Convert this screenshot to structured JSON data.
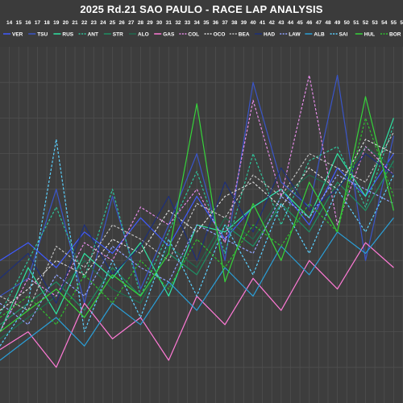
{
  "chart_data": {
    "type": "line",
    "title": "2025 Rd.21 SAO PAULO - RACE LAP ANALYSIS",
    "grid": true,
    "legend_placement": "top",
    "x_ticks": [
      14,
      15,
      16,
      17,
      18,
      19,
      20,
      21,
      22,
      23,
      24,
      25,
      26,
      27,
      28,
      29,
      30,
      31,
      32,
      33,
      34,
      35,
      36,
      37,
      38,
      39,
      40,
      41,
      42,
      43,
      44,
      45,
      46,
      47,
      48,
      49,
      50,
      51,
      52,
      53,
      54,
      55,
      56
    ],
    "x_range": [
      13,
      56
    ],
    "y_range": [
      0,
      100
    ],
    "series": [
      {
        "name": "VER",
        "color": "#3f5bff",
        "dash": "solid",
        "x": [
          13,
          16,
          19,
          22,
          25,
          28,
          31,
          34,
          37,
          40,
          43,
          46,
          49,
          52,
          55
        ],
        "y": [
          40,
          45,
          38,
          48,
          42,
          52,
          44,
          58,
          46,
          55,
          60,
          50,
          66,
          58,
          70
        ]
      },
      {
        "name": "TSU",
        "color": "#3a55c8",
        "dash": "solid",
        "x": [
          13,
          16,
          19,
          22,
          25,
          28,
          31,
          34,
          37,
          40,
          43,
          46,
          49,
          52,
          55
        ],
        "y": [
          30,
          35,
          60,
          28,
          58,
          32,
          50,
          70,
          40,
          90,
          62,
          55,
          92,
          40,
          75
        ]
      },
      {
        "name": "RUS",
        "color": "#2ee5a2",
        "dash": "solid",
        "x": [
          13,
          16,
          19,
          22,
          25,
          28,
          31,
          34,
          37,
          40,
          43,
          46,
          49,
          52,
          55
        ],
        "y": [
          20,
          38,
          25,
          42,
          35,
          45,
          30,
          50,
          48,
          55,
          60,
          52,
          70,
          58,
          80
        ]
      },
      {
        "name": "ANT",
        "color": "#2ec39a",
        "dash": "dashed",
        "x": [
          13,
          16,
          19,
          22,
          25,
          28,
          31,
          34,
          37,
          40,
          43,
          46,
          49,
          52,
          55
        ],
        "y": [
          25,
          40,
          55,
          35,
          60,
          30,
          48,
          65,
          42,
          70,
          50,
          68,
          72,
          55,
          78
        ]
      },
      {
        "name": "STR",
        "color": "#1e8f63",
        "dash": "solid",
        "x": [
          13,
          16,
          19,
          22,
          25,
          28,
          31,
          34,
          37,
          40,
          43,
          46,
          49,
          52,
          55
        ],
        "y": [
          22,
          28,
          34,
          26,
          38,
          30,
          42,
          36,
          50,
          44,
          56,
          48,
          62,
          54,
          68
        ]
      },
      {
        "name": "ALO",
        "color": "#1f6b4e",
        "dash": "solid",
        "x": [
          13,
          16,
          19,
          22,
          25,
          28,
          31,
          34,
          37,
          40,
          43,
          46,
          49,
          52,
          55
        ],
        "y": [
          18,
          24,
          30,
          40,
          32,
          28,
          44,
          38,
          52,
          46,
          58,
          64,
          60,
          72,
          66
        ]
      },
      {
        "name": "GAS",
        "color": "#ff7ad6",
        "dash": "solid",
        "x": [
          13,
          16,
          19,
          22,
          25,
          28,
          31,
          34,
          37,
          40,
          43,
          46,
          49,
          52,
          55
        ],
        "y": [
          15,
          20,
          10,
          28,
          18,
          24,
          12,
          30,
          22,
          35,
          26,
          40,
          32,
          45,
          38
        ]
      },
      {
        "name": "COL",
        "color": "#e48be6",
        "dash": "dashed",
        "x": [
          13,
          16,
          19,
          22,
          25,
          28,
          31,
          34,
          37,
          40,
          43,
          46,
          49,
          52,
          55
        ],
        "y": [
          20,
          35,
          30,
          45,
          40,
          55,
          50,
          60,
          45,
          85,
          58,
          92,
          50,
          72,
          64
        ]
      },
      {
        "name": "OCO",
        "color": "#d9d9d9",
        "dash": "dashed",
        "x": [
          13,
          16,
          19,
          22,
          25,
          28,
          31,
          34,
          37,
          40,
          43,
          46,
          49,
          52,
          55
        ],
        "y": [
          26,
          32,
          40,
          36,
          46,
          42,
          54,
          48,
          58,
          62,
          55,
          66,
          60,
          74,
          70
        ]
      },
      {
        "name": "BEA",
        "color": "#bfbfbf",
        "dash": "dashed",
        "x": [
          13,
          16,
          19,
          22,
          25,
          28,
          31,
          34,
          37,
          40,
          43,
          46,
          49,
          52,
          55
        ],
        "y": [
          30,
          26,
          44,
          38,
          50,
          46,
          40,
          56,
          52,
          64,
          58,
          70,
          66,
          62,
          76
        ]
      },
      {
        "name": "HAD",
        "color": "#1d2f7a",
        "dash": "solid",
        "x": [
          13,
          16,
          19,
          22,
          25,
          28,
          31,
          34,
          37,
          40,
          43,
          46,
          49,
          52,
          55
        ],
        "y": [
          35,
          42,
          28,
          50,
          36,
          44,
          58,
          40,
          62,
          48,
          66,
          54,
          60,
          70,
          64
        ]
      },
      {
        "name": "LAW",
        "color": "#8fa3ff",
        "dash": "dashed",
        "x": [
          13,
          16,
          19,
          22,
          25,
          28,
          31,
          34,
          37,
          40,
          43,
          46,
          49,
          52,
          55
        ],
        "y": [
          28,
          22,
          36,
          30,
          44,
          38,
          34,
          50,
          46,
          42,
          58,
          52,
          64,
          60,
          56
        ]
      },
      {
        "name": "ALB",
        "color": "#2a9fd8",
        "dash": "solid",
        "x": [
          13,
          16,
          19,
          22,
          25,
          28,
          31,
          34,
          37,
          40,
          43,
          46,
          49,
          52,
          55
        ],
        "y": [
          12,
          18,
          24,
          16,
          28,
          22,
          34,
          26,
          38,
          30,
          44,
          36,
          48,
          42,
          52
        ]
      },
      {
        "name": "SAI",
        "color": "#5ad0ff",
        "dash": "dashed",
        "x": [
          13,
          16,
          19,
          22,
          25,
          28,
          31,
          34,
          37,
          40,
          43,
          46,
          49,
          52,
          55
        ],
        "y": [
          16,
          28,
          74,
          20,
          40,
          24,
          46,
          30,
          50,
          36,
          56,
          42,
          60,
          48,
          64
        ]
      },
      {
        "name": "HUL",
        "color": "#36d33a",
        "dash": "solid",
        "x": [
          13,
          16,
          19,
          22,
          25,
          28,
          31,
          34,
          37,
          40,
          43,
          46,
          49,
          52,
          55
        ],
        "y": [
          20,
          26,
          32,
          24,
          36,
          30,
          42,
          84,
          34,
          56,
          40,
          62,
          48,
          86,
          54
        ]
      },
      {
        "name": "BOR",
        "color": "#2fbf2f",
        "dash": "dashed",
        "x": [
          13,
          16,
          19,
          22,
          25,
          28,
          31,
          34,
          37,
          40,
          43,
          46,
          49,
          52,
          55
        ],
        "y": [
          24,
          30,
          22,
          36,
          28,
          40,
          32,
          46,
          38,
          50,
          44,
          56,
          48,
          80,
          58
        ]
      }
    ]
  }
}
